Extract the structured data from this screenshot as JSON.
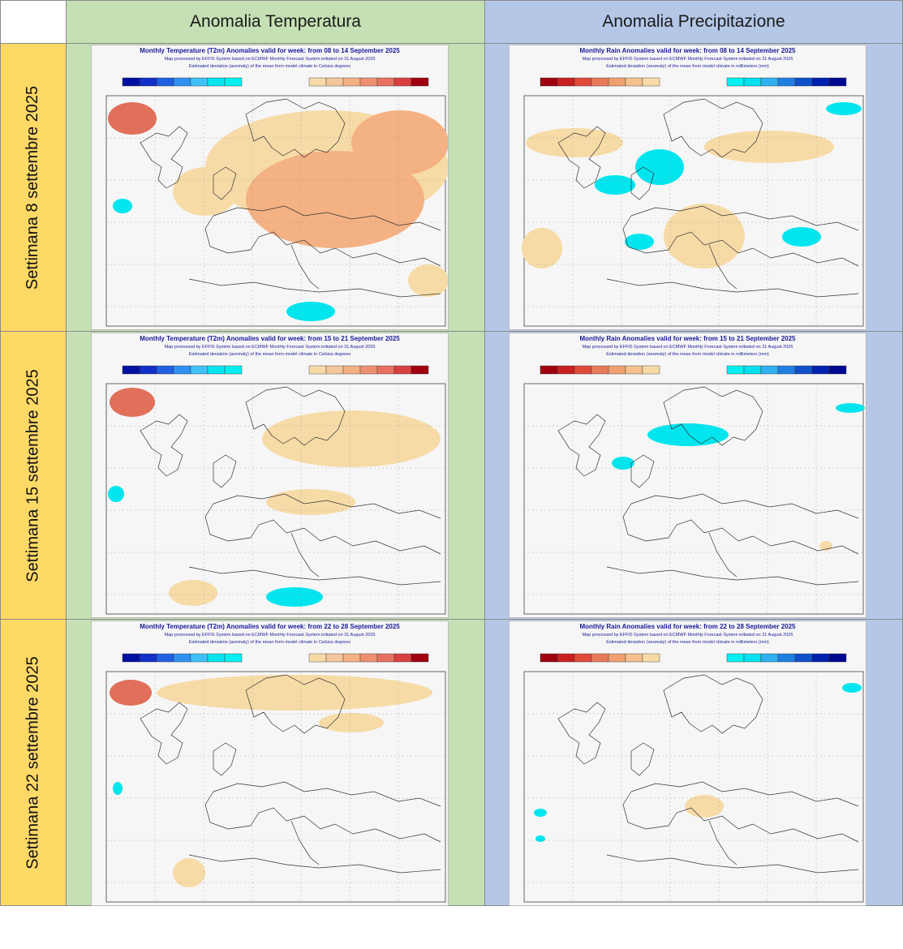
{
  "headers": {
    "corner": "",
    "temperature": "Anomalia Temperatura",
    "precipitation": "Anomalia Precipitazione"
  },
  "rows": [
    {
      "label": "Settimana 8 settembre 2025",
      "temp_title": "Monthly Temperature (T2m) Anomalies valid for week: from 08 to 14 September 2025",
      "rain_title": "Monthly Rain Anomalies valid for week: from 08 to 14 September 2025"
    },
    {
      "label": "Settimana 15 settembre 2025",
      "temp_title": "Monthly Temperature (T2m) Anomalies valid for week: from 15 to 21 September 2025",
      "rain_title": "Monthly Rain Anomalies valid for week: from 15 to 21 September 2025"
    },
    {
      "label": "Settimana 22 settembre 2025",
      "temp_title": "Monthly Temperature (T2m) Anomalies valid for week: from 22 to 28 September 2025",
      "rain_title": "Monthly Rain Anomalies valid for week: from 22 to 28 September 2025"
    }
  ],
  "subtitles": {
    "processed": "Map processed by EFFIS System based on ECMWF Monthly Forecast System initiated on 31 August 2025",
    "temp_unit": "Estimated deviation (anomaly) of the mean from model climate in Celsius degrees",
    "rain_unit": "Estimated deviation (anomaly) of the mean from model climate in millimeters (mm)"
  },
  "colors": {
    "header_temp_bg": "#c5e0b4",
    "header_rain_bg": "#b4c7e7",
    "row_label_bg": "#ffd966",
    "map_bg": "#f6f6f6",
    "cold": "#00e5ee",
    "warm_light": "#f7dba7",
    "warm_mid": "#f4b183",
    "warm_strong": "#e0705a",
    "dry_light": "#f7dba7",
    "dry_mid": "#f4b183",
    "wet": "#00e5ee",
    "coast": "#333333"
  }
}
